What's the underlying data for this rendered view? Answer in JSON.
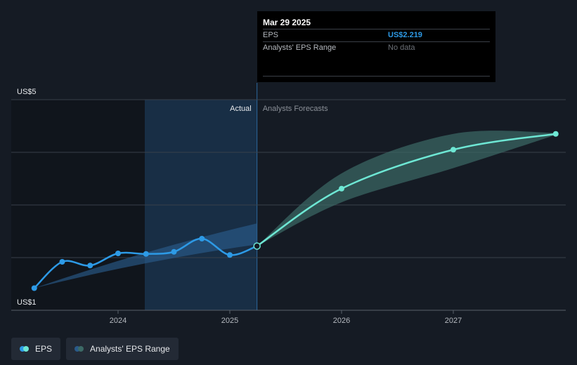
{
  "colors": {
    "eps_line": "#2d9ae6",
    "forecast_line": "#6ee7d4",
    "range_fill": "#3c6a66",
    "past_range_fill": "#2a5a8a",
    "actual_region": "#1a3550",
    "grid": "#39404a"
  },
  "chart_data": {
    "type": "line",
    "ylim": [
      1,
      5
    ],
    "y_ticks": [
      "US$5",
      "US$1"
    ],
    "x_ticks": [
      "2024",
      "2025",
      "2026",
      "2027"
    ],
    "region_labels": {
      "actual": "Actual",
      "forecast": "Analysts Forecasts"
    },
    "series": [
      {
        "name": "EPS",
        "x": [
          "2023-04",
          "2023-07",
          "2023-10",
          "2024-01",
          "2024-04",
          "2024-07",
          "2024-10",
          "2025-01",
          "2025-03-29"
        ],
        "values": [
          1.42,
          1.92,
          1.85,
          2.08,
          2.07,
          2.11,
          2.36,
          2.05,
          2.219
        ]
      },
      {
        "name": "Analysts' EPS Range",
        "x": [
          "2025-03-29",
          "2026-01",
          "2027-01",
          "2027-12"
        ],
        "values": [
          2.219,
          3.31,
          4.05,
          4.35
        ],
        "low": [
          2.219,
          3.05,
          3.7,
          4.33
        ],
        "high": [
          2.219,
          3.6,
          4.35,
          4.37
        ]
      }
    ],
    "tooltip": {
      "date": "Mar 29 2025",
      "rows": [
        {
          "label": "EPS",
          "value": "US$2.219"
        },
        {
          "label": "Analysts' EPS Range",
          "value": "No data"
        }
      ]
    }
  },
  "legend": [
    {
      "label": "EPS",
      "icon": "eps-dots-icon"
    },
    {
      "label": "Analysts' EPS Range",
      "icon": "range-dots-icon"
    }
  ]
}
